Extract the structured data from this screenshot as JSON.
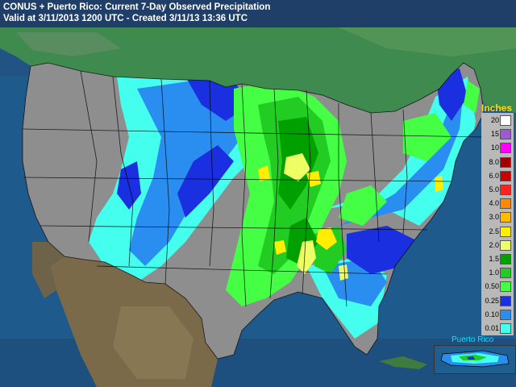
{
  "header": {
    "title_line1": "CONUS + Puerto Rico: Current 7-Day Observed Precipitation",
    "title_line2": "Valid at 3/11/2013 1200 UTC - Created 3/11/13 13:36 UTC"
  },
  "legend": {
    "title": "Inches",
    "items": [
      {
        "label": "20",
        "color": "#ffffff"
      },
      {
        "label": "15",
        "color": "#9b59d6"
      },
      {
        "label": "10",
        "color": "#ff00ff"
      },
      {
        "label": "8.0",
        "color": "#a00000"
      },
      {
        "label": "6.0",
        "color": "#cc0000"
      },
      {
        "label": "5.0",
        "color": "#ff2020"
      },
      {
        "label": "4.0",
        "color": "#ff8800"
      },
      {
        "label": "3.0",
        "color": "#ffbb00"
      },
      {
        "label": "2.5",
        "color": "#ffee00"
      },
      {
        "label": "2.0",
        "color": "#eeff66"
      },
      {
        "label": "1.5",
        "color": "#00a000"
      },
      {
        "label": "1.0",
        "color": "#22cc22"
      },
      {
        "label": "0.50",
        "color": "#44ff44"
      },
      {
        "label": "0.25",
        "color": "#1a2fe0"
      },
      {
        "label": "0.10",
        "color": "#2a8ef0"
      },
      {
        "label": "0.01",
        "color": "#44ffee"
      }
    ]
  },
  "inset": {
    "label": "Puerto Rico"
  },
  "colors": {
    "ocean": "#1f5a8c",
    "no_precip_land": "#8e8e8e",
    "canada_mexico": "#3a7a4a"
  }
}
